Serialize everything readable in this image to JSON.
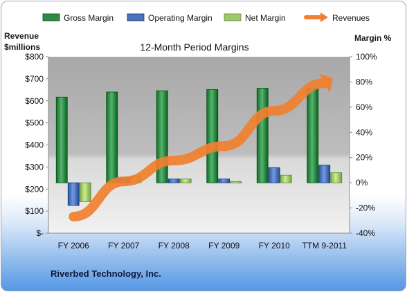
{
  "chart_data": {
    "type": "bar",
    "title": "12-Month Period Margins",
    "company": "Riverbed Technology, Inc.",
    "y_left_label_line1": "Revenue",
    "y_left_label_line2": "$millions",
    "y_right_label": "Margin %",
    "categories": [
      "FY 2006",
      "FY 2007",
      "FY 2008",
      "FY 2009",
      "FY 2010",
      "TTM 9-2011"
    ],
    "left_axis": {
      "min": 0,
      "max": 800,
      "step": 100,
      "tick_labels": [
        "$-",
        "$100",
        "$200",
        "$300",
        "$400",
        "$500",
        "$600",
        "$700",
        "$800"
      ]
    },
    "right_axis": {
      "min": -40,
      "max": 100,
      "step": 20,
      "tick_labels": [
        "-40%",
        "-20%",
        "0%",
        "20%",
        "40%",
        "60%",
        "80%",
        "100%"
      ]
    },
    "series": [
      {
        "name": "Gross Margin",
        "axis": "right",
        "kind": "bar",
        "color": "#2e8b46",
        "values": [
          68,
          72,
          73,
          74,
          75,
          75
        ]
      },
      {
        "name": "Operating Margin",
        "axis": "right",
        "kind": "bar",
        "color": "#4a72b8",
        "values": [
          -18,
          4,
          3,
          3,
          12,
          14
        ]
      },
      {
        "name": "Net Margin",
        "axis": "right",
        "kind": "bar",
        "color": "#9fc76a",
        "values": [
          -15,
          5,
          3,
          1,
          6,
          8
        ]
      },
      {
        "name": "Revenues",
        "axis": "left",
        "kind": "line",
        "color": "#f07f2f",
        "values": [
          75,
          235,
          330,
          395,
          555,
          680
        ]
      }
    ],
    "legend_position": "top",
    "grid": false
  }
}
